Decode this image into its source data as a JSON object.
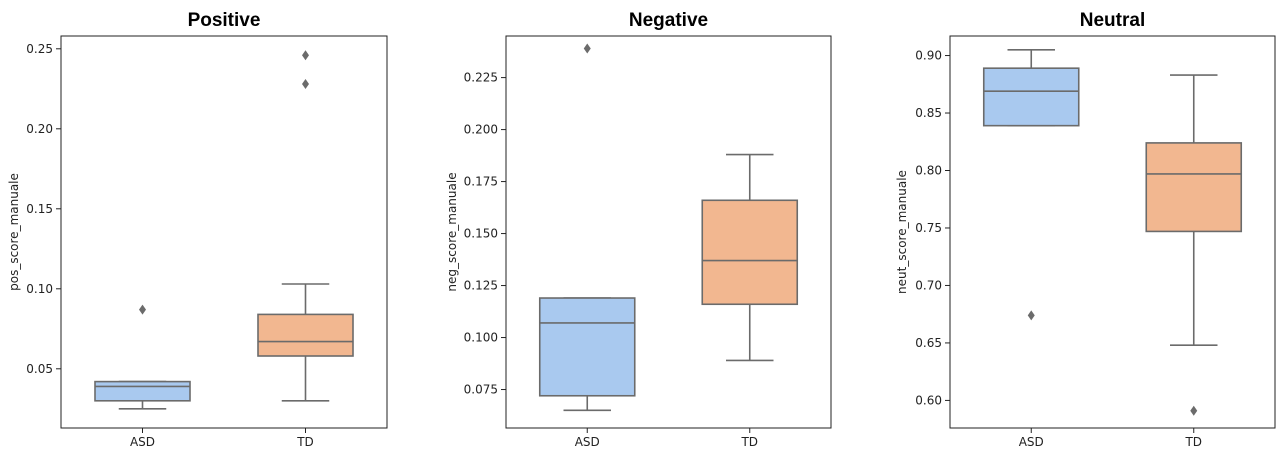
{
  "chart_data": [
    {
      "type": "box",
      "title": "Positive",
      "ylabel": "pos_score_manuale",
      "xlabel": "",
      "categories": [
        "ASD",
        "TD"
      ],
      "ylim": [
        0.013,
        0.258
      ],
      "yticks": [
        0.05,
        0.1,
        0.15,
        0.2,
        0.25
      ],
      "ytick_labels": [
        "0.05",
        "0.10",
        "0.15",
        "0.20",
        "0.25"
      ],
      "series": [
        {
          "category": "ASD",
          "color": "#a9c9ef",
          "whisker_low": 0.025,
          "q1": 0.03,
          "median": 0.039,
          "q3": 0.042,
          "whisker_high": 0.042,
          "outliers": [
            0.087
          ]
        },
        {
          "category": "TD",
          "color": "#f2b790",
          "whisker_low": 0.03,
          "q1": 0.058,
          "median": 0.067,
          "q3": 0.084,
          "whisker_high": 0.103,
          "outliers": [
            0.228,
            0.246
          ]
        }
      ]
    },
    {
      "type": "box",
      "title": "Negative",
      "ylabel": "neg_score_manuale",
      "xlabel": "",
      "categories": [
        "ASD",
        "TD"
      ],
      "ylim": [
        0.0565,
        0.245
      ],
      "yticks": [
        0.075,
        0.1,
        0.125,
        0.15,
        0.175,
        0.2,
        0.225
      ],
      "ytick_labels": [
        "0.075",
        "0.100",
        "0.125",
        "0.150",
        "0.175",
        "0.200",
        "0.225"
      ],
      "series": [
        {
          "category": "ASD",
          "color": "#a9c9ef",
          "whisker_low": 0.065,
          "q1": 0.072,
          "median": 0.107,
          "q3": 0.119,
          "whisker_high": 0.119,
          "outliers": [
            0.239
          ]
        },
        {
          "category": "TD",
          "color": "#f2b790",
          "whisker_low": 0.089,
          "q1": 0.116,
          "median": 0.137,
          "q3": 0.166,
          "whisker_high": 0.188,
          "outliers": []
        }
      ]
    },
    {
      "type": "box",
      "title": "Neutral",
      "ylabel": "neut_score_manuale",
      "xlabel": "",
      "categories": [
        "ASD",
        "TD"
      ],
      "ylim": [
        0.576,
        0.917
      ],
      "yticks": [
        0.6,
        0.65,
        0.7,
        0.75,
        0.8,
        0.85,
        0.9
      ],
      "ytick_labels": [
        "0.60",
        "0.65",
        "0.70",
        "0.75",
        "0.80",
        "0.85",
        "0.90"
      ],
      "series": [
        {
          "category": "ASD",
          "color": "#a9c9ef",
          "whisker_low": 0.839,
          "q1": 0.839,
          "median": 0.869,
          "q3": 0.889,
          "whisker_high": 0.905,
          "outliers": [
            0.674
          ]
        },
        {
          "category": "TD",
          "color": "#f2b790",
          "whisker_low": 0.648,
          "q1": 0.747,
          "median": 0.797,
          "q3": 0.824,
          "whisker_high": 0.883,
          "outliers": [
            0.591
          ]
        }
      ]
    }
  ]
}
